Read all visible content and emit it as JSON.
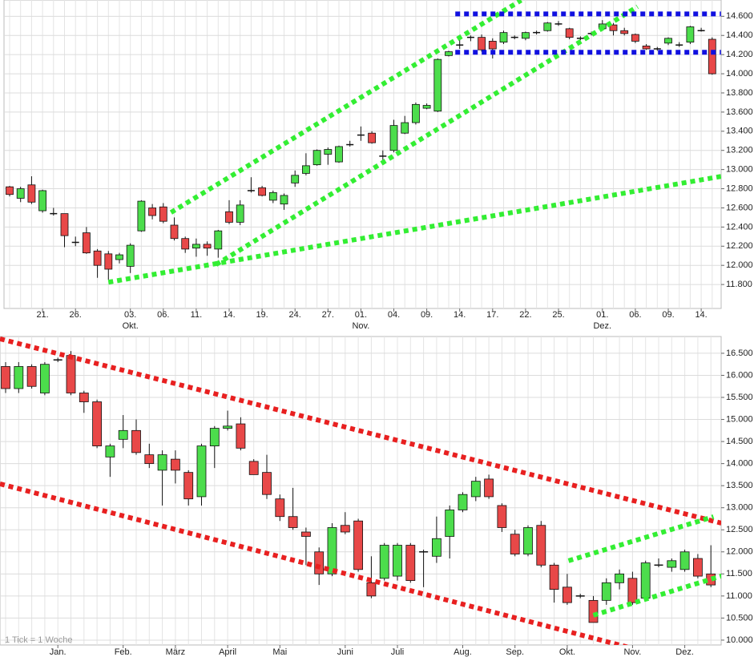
{
  "chart_data": [
    {
      "type": "candlestick",
      "categories": [
        null,
        null,
        null,
        "21.",
        null,
        null,
        "26.",
        null,
        null,
        null,
        null,
        "03.",
        null,
        null,
        "06.",
        null,
        null,
        "11.",
        null,
        null,
        "14.",
        null,
        null,
        "19.",
        null,
        null,
        "24.",
        null,
        null,
        "27.",
        null,
        null,
        "01.",
        null,
        null,
        "04.",
        null,
        null,
        "09.",
        null,
        null,
        "14.",
        null,
        null,
        "17.",
        null,
        null,
        "22.",
        null,
        null,
        "25.",
        null,
        null,
        null,
        "01.",
        null,
        null,
        "06.",
        null,
        null,
        "09.",
        null,
        null,
        "14.",
        null
      ],
      "categories2": [
        null,
        null,
        null,
        null,
        null,
        null,
        null,
        null,
        null,
        null,
        null,
        "Okt.",
        null,
        null,
        null,
        null,
        null,
        null,
        null,
        null,
        null,
        null,
        null,
        null,
        null,
        null,
        null,
        null,
        null,
        null,
        null,
        null,
        "Nov.",
        null,
        null,
        null,
        null,
        null,
        null,
        null,
        null,
        null,
        null,
        null,
        null,
        null,
        null,
        null,
        null,
        null,
        null,
        null,
        null,
        null,
        "Dez.",
        null,
        null,
        null,
        null,
        null,
        null,
        null,
        null,
        null,
        null
      ],
      "open": [
        12820,
        12700,
        12840,
        12570,
        12540,
        12540,
        12240,
        12340,
        12150,
        12120,
        12060,
        11990,
        12360,
        12600,
        12610,
        12420,
        12280,
        12180,
        12220,
        12170,
        12560,
        12450,
        12780,
        12810,
        12680,
        12640,
        12860,
        12960,
        13050,
        13160,
        13080,
        13260,
        13360,
        13380,
        13140,
        13200,
        13380,
        13490,
        13640,
        13610,
        14190,
        14300,
        14380,
        14380,
        14340,
        14330,
        14380,
        14370,
        14430,
        14450,
        14520,
        14470,
        14370,
        14420,
        14470,
        14510,
        14450,
        14410,
        14290,
        14260,
        14320,
        14300,
        14330,
        14450,
        14360
      ],
      "close": [
        12740,
        12800,
        12660,
        12780,
        12540,
        12310,
        12250,
        12130,
        12000,
        11960,
        12110,
        12210,
        12670,
        12520,
        12460,
        12280,
        12170,
        12220,
        12180,
        12360,
        12450,
        12630,
        12790,
        12730,
        12760,
        12730,
        12940,
        13040,
        13200,
        13210,
        13240,
        13270,
        13360,
        13280,
        13150,
        13460,
        13490,
        13680,
        13670,
        14150,
        14230,
        14310,
        14390,
        14250,
        14260,
        14430,
        14390,
        14430,
        14440,
        14530,
        14530,
        14380,
        14380,
        14430,
        14520,
        14450,
        14420,
        14340,
        14260,
        14270,
        14370,
        14310,
        14490,
        14460,
        14000
      ],
      "high": [
        12830,
        12820,
        12930,
        12790,
        12600,
        12540,
        12300,
        12400,
        12170,
        12150,
        12130,
        12230,
        12680,
        12640,
        12650,
        12500,
        12300,
        12280,
        12250,
        12370,
        12680,
        12680,
        12920,
        12830,
        12780,
        12750,
        12990,
        13170,
        13210,
        13230,
        13250,
        13300,
        13450,
        13400,
        13200,
        13520,
        13560,
        13700,
        13690,
        14160,
        14240,
        14360,
        14400,
        14410,
        14370,
        14450,
        14400,
        14440,
        14450,
        14540,
        14550,
        14480,
        14390,
        14440,
        14560,
        14530,
        14480,
        14420,
        14310,
        14280,
        14380,
        14330,
        14500,
        14480,
        14380
      ],
      "low": [
        12720,
        12660,
        12640,
        12550,
        12520,
        12190,
        12200,
        12120,
        11870,
        11850,
        12020,
        11920,
        12350,
        12480,
        12440,
        12260,
        12130,
        12090,
        12100,
        12080,
        12430,
        12420,
        12760,
        12720,
        12650,
        12580,
        12820,
        12940,
        13040,
        13050,
        13070,
        13240,
        13300,
        13270,
        13100,
        13180,
        13370,
        13470,
        13630,
        13600,
        14180,
        14260,
        14340,
        14230,
        14160,
        14310,
        14360,
        14350,
        14410,
        14440,
        14500,
        14360,
        14350,
        14400,
        14450,
        14400,
        14400,
        14320,
        14250,
        14240,
        14300,
        14280,
        14310,
        14440,
        13990
      ],
      "up_color": "#4cdd4c",
      "down_color": "#e84848",
      "ylim": [
        11550,
        14770
      ],
      "yticks": [
        {
          "value": 11800,
          "label": "11.800"
        },
        {
          "value": 12000,
          "label": "12.000"
        },
        {
          "value": 12200,
          "label": "12.200"
        },
        {
          "value": 12400,
          "label": "12.400"
        },
        {
          "value": 12600,
          "label": "12.600"
        },
        {
          "value": 12800,
          "label": "12.800"
        },
        {
          "value": 13000,
          "label": "13.000"
        },
        {
          "value": 13200,
          "label": "13.200"
        },
        {
          "value": 13400,
          "label": "13.400"
        },
        {
          "value": 13600,
          "label": "13.600"
        },
        {
          "value": 13800,
          "label": "13.800"
        },
        {
          "value": 14000,
          "label": "14.000"
        },
        {
          "value": 14200,
          "label": "14.200"
        },
        {
          "value": 14400,
          "label": "14.400"
        },
        {
          "value": 14600,
          "label": "14.600"
        }
      ],
      "grid": true,
      "trendlines": [
        {
          "color": "#33ee33",
          "x": [
            14.7,
            46.6
          ],
          "values": [
            12552,
            14767
          ]
        },
        {
          "color": "#33ee33",
          "x": [
            18.8,
            57.2
          ],
          "values": [
            12008,
            14700
          ]
        },
        {
          "color": "#33ee33",
          "x": [
            9,
            64.8
          ],
          "values": [
            11824,
            12928
          ]
        },
        {
          "color": "#1010e0",
          "x": [
            40.6,
            64.8
          ],
          "values": [
            14625,
            14625
          ]
        },
        {
          "color": "#1010e0",
          "x": [
            40.6,
            64.8
          ],
          "values": [
            14224,
            14224
          ]
        }
      ]
    },
    {
      "type": "candlestick",
      "categories": [
        null,
        null,
        null,
        null,
        "Jan.",
        null,
        null,
        null,
        null,
        "Feb.",
        null,
        null,
        null,
        "März",
        null,
        null,
        null,
        "April",
        null,
        null,
        null,
        "Mai",
        null,
        null,
        null,
        null,
        "Juni",
        null,
        null,
        null,
        "Juli",
        null,
        null,
        null,
        null,
        "Aug.",
        null,
        null,
        null,
        "Sep.",
        null,
        null,
        null,
        "Okt.",
        null,
        null,
        null,
        null,
        "Nov.",
        null,
        null,
        null,
        "Dez.",
        null,
        null
      ],
      "open": [
        16200,
        15700,
        16200,
        15600,
        16350,
        16450,
        15600,
        15400,
        14150,
        14550,
        14750,
        14200,
        13850,
        14100,
        13800,
        13250,
        14400,
        14800,
        14900,
        14050,
        13800,
        13200,
        12800,
        12450,
        12000,
        11500,
        12600,
        12700,
        11300,
        11400,
        11450,
        12150,
        12000,
        11900,
        12350,
        12950,
        13250,
        13650,
        13050,
        12400,
        11950,
        12600,
        11700,
        11200,
        11000,
        10900,
        10900,
        11300,
        11400,
        10950,
        11700,
        11650,
        11600,
        11850,
        11500
      ],
      "close": [
        15700,
        16200,
        15750,
        16250,
        16350,
        15600,
        15400,
        14400,
        14400,
        14750,
        14250,
        14000,
        14200,
        13850,
        13200,
        14400,
        14800,
        14850,
        14350,
        13750,
        13300,
        12800,
        12550,
        12350,
        11500,
        12550,
        12450,
        11600,
        11000,
        12150,
        12150,
        11350,
        12000,
        12300,
        12950,
        13300,
        13600,
        13250,
        12550,
        11950,
        12550,
        11700,
        11150,
        10850,
        11000,
        10400,
        11300,
        11500,
        10850,
        11750,
        11700,
        11800,
        12000,
        11450,
        11250
      ],
      "high": [
        16300,
        16300,
        16250,
        16300,
        16400,
        16550,
        15650,
        15450,
        14450,
        15100,
        15000,
        14450,
        14300,
        14300,
        13850,
        14450,
        14850,
        15200,
        15050,
        14100,
        14200,
        13300,
        13450,
        12550,
        12100,
        12650,
        12900,
        12750,
        11900,
        12200,
        12200,
        12200,
        12050,
        12800,
        13050,
        13350,
        13700,
        13750,
        13100,
        12500,
        12600,
        12700,
        11750,
        11500,
        11050,
        11000,
        11400,
        11600,
        11550,
        11800,
        11850,
        11850,
        12050,
        11950,
        12150
      ],
      "low": [
        15600,
        15600,
        15700,
        15550,
        16300,
        15550,
        15150,
        14350,
        13700,
        14350,
        14200,
        13900,
        13050,
        13550,
        13050,
        13050,
        13900,
        14750,
        14300,
        13750,
        13200,
        12700,
        12500,
        11700,
        11250,
        11450,
        12400,
        11550,
        10950,
        11350,
        11350,
        11300,
        11200,
        11750,
        11850,
        12900,
        13150,
        13200,
        12450,
        11900,
        11900,
        11650,
        10850,
        10800,
        10950,
        10400,
        10800,
        11150,
        10800,
        10900,
        11650,
        11550,
        11550,
        11400,
        11200
      ],
      "up_color": "#4cdd4c",
      "down_color": "#e84848",
      "ylim": [
        9890,
        16880
      ],
      "yticks": [
        {
          "value": 10000,
          "label": "10.000"
        },
        {
          "value": 10500,
          "label": "10.500"
        },
        {
          "value": 11000,
          "label": "11.000"
        },
        {
          "value": 11500,
          "label": "11.500"
        },
        {
          "value": 12000,
          "label": "12.000"
        },
        {
          "value": 12500,
          "label": "12.500"
        },
        {
          "value": 13000,
          "label": "13.000"
        },
        {
          "value": 13500,
          "label": "13.500"
        },
        {
          "value": 14000,
          "label": "14.000"
        },
        {
          "value": 14500,
          "label": "14.500"
        },
        {
          "value": 15000,
          "label": "15.000"
        },
        {
          "value": 15500,
          "label": "15.500"
        },
        {
          "value": 16000,
          "label": "16.000"
        },
        {
          "value": 16500,
          "label": "16.500"
        }
      ],
      "grid": true,
      "annotation": "1 Tick = 1 Woche",
      "trendlines": [
        {
          "color": "#e82020",
          "x": [
            -0.43,
            54.8
          ],
          "values": [
            16827,
            12651
          ]
        },
        {
          "color": "#e82020",
          "x": [
            -0.43,
            47.7
          ],
          "values": [
            13541,
            9837
          ]
        },
        {
          "color": "#33ee33",
          "x": [
            43.1,
            54.2
          ],
          "values": [
            11798,
            12796
          ]
        },
        {
          "color": "#33ee33",
          "x": [
            45,
            56
          ],
          "values": [
            10563,
            11562
          ]
        }
      ]
    }
  ]
}
